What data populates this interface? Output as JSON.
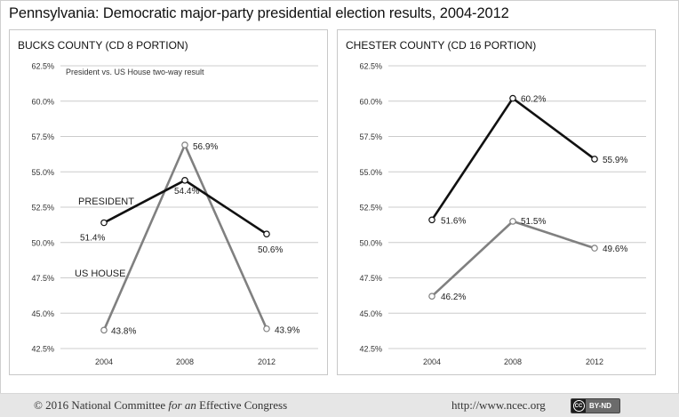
{
  "title": "Pennsylvania: Democratic major-party presidential election results, 2004-2012",
  "footer": {
    "copyright": "© 2016 National Committee",
    "copyright_italic": "for an",
    "copyright_end": "Effective Congress",
    "url": "http://www.ncec.org",
    "license_icon": "CC",
    "license_label": "BY-ND"
  },
  "colors": {
    "president": "#111111",
    "house": "#808080",
    "grid": "#cccccc"
  },
  "chart_data": [
    {
      "type": "line",
      "title": "BUCKS COUNTY (CD 8 PORTION)",
      "annotation": "President vs. US House two-way result",
      "categories": [
        "2004",
        "2008",
        "2012"
      ],
      "ylim": [
        42.5,
        62.5
      ],
      "yticks": [
        "42.5%",
        "45.0%",
        "47.5%",
        "50.0%",
        "52.5%",
        "55.0%",
        "57.5%",
        "60.0%",
        "62.5%"
      ],
      "series": [
        {
          "name": "PRESIDENT",
          "key": "president",
          "values": [
            51.4,
            54.4,
            50.6
          ],
          "labels": [
            "51.4%",
            "54.4%",
            "50.6%"
          ]
        },
        {
          "name": "US HOUSE",
          "key": "house",
          "values": [
            43.8,
            56.9,
            43.9
          ],
          "labels": [
            "43.8%",
            "56.9%",
            "43.9%"
          ]
        }
      ]
    },
    {
      "type": "line",
      "title": "CHESTER COUNTY (CD 16 PORTION)",
      "annotation": "",
      "categories": [
        "2004",
        "2008",
        "2012"
      ],
      "ylim": [
        42.5,
        62.5
      ],
      "yticks": [
        "42.5%",
        "45.0%",
        "47.5%",
        "50.0%",
        "52.5%",
        "55.0%",
        "57.5%",
        "60.0%",
        "62.5%"
      ],
      "series": [
        {
          "key": "president",
          "values": [
            51.6,
            60.2,
            55.9
          ],
          "labels": [
            "51.6%",
            "60.2%",
            "55.9%"
          ]
        },
        {
          "key": "house",
          "values": [
            46.2,
            51.5,
            49.6
          ],
          "labels": [
            "46.2%",
            "51.5%",
            "49.6%"
          ]
        }
      ]
    }
  ]
}
